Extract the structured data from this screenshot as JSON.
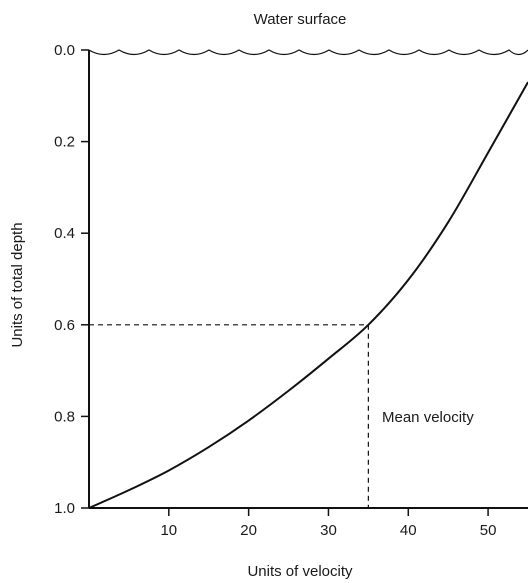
{
  "chart_data": {
    "type": "line",
    "xlabel": "Units of velocity",
    "ylabel": "Units of total depth",
    "top_label": "Water surface",
    "annotation": "Mean velocity",
    "xlim": [
      0,
      55
    ],
    "ylim": [
      1.0,
      0.0
    ],
    "x_ticks": [
      10,
      20,
      30,
      40,
      50
    ],
    "y_ticks": [
      0.0,
      0.2,
      0.4,
      0.6,
      0.8,
      1.0
    ],
    "y_tick_labels": [
      "0.0",
      "0.2",
      "0.4",
      "0.6",
      "0.8",
      "1.0"
    ],
    "grid": false,
    "series": [
      {
        "x": [
          0,
          5,
          10,
          15,
          20,
          25,
          30,
          35,
          40,
          45,
          50,
          55
        ],
        "y": [
          1.0,
          0.961,
          0.918,
          0.867,
          0.809,
          0.744,
          0.674,
          0.6,
          0.502,
          0.376,
          0.224,
          0.07
        ]
      }
    ],
    "reference": {
      "x": 35,
      "y": 0.6
    },
    "colors": {
      "line": "#111111",
      "text": "#1a1a1a"
    }
  }
}
